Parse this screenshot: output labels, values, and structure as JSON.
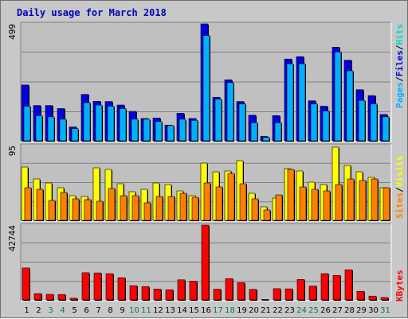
{
  "title": "Daily usage for March 2018",
  "colors": {
    "title": "#0000c0",
    "hits_front": "#00c0ff",
    "hits_back": "#00d8d0",
    "files_front": "#0000e0",
    "pages_front": "#00b0ff",
    "visits": "#ffff00",
    "sites": "#ff8000",
    "kbytes": "#ff0000",
    "weekend": "#008040",
    "weekday": "#000000",
    "panel_bg": "#c0c0c0",
    "grid": "#808080"
  },
  "chart_data": [
    {
      "type": "bar",
      "panel": "top",
      "ylim": [
        0,
        499
      ],
      "max_label": "499",
      "legend_labels": [
        "Pages",
        "/",
        "Files",
        "/",
        "Hits"
      ],
      "categories": [
        "1",
        "2",
        "3",
        "4",
        "5",
        "6",
        "7",
        "8",
        "9",
        "10",
        "11",
        "12",
        "13",
        "14",
        "15",
        "16",
        "17",
        "18",
        "19",
        "20",
        "21",
        "22",
        "23",
        "24",
        "25",
        "26",
        "27",
        "28",
        "29",
        "30",
        "31"
      ],
      "weekend_days": [
        "3",
        "4",
        "10",
        "11",
        "17",
        "18",
        "24",
        "25",
        "31"
      ],
      "series": [
        {
          "name": "Files",
          "values": [
            240,
            153,
            153,
            140,
            62,
            200,
            171,
            170,
            155,
            128,
            98,
            100,
            70,
            120,
            98,
            499,
            188,
            262,
            170,
            112,
            22,
            110,
            350,
            360,
            173,
            150,
            400,
            345,
            220,
            195,
            115
          ]
        },
        {
          "name": "Pages",
          "values": [
            150,
            110,
            105,
            95,
            55,
            165,
            155,
            150,
            140,
            95,
            95,
            85,
            68,
            95,
            90,
            450,
            180,
            250,
            160,
            80,
            18,
            80,
            330,
            330,
            160,
            130,
            380,
            300,
            175,
            160,
            105
          ]
        }
      ]
    },
    {
      "type": "bar",
      "panel": "middle",
      "ylim": [
        0,
        95
      ],
      "max_label": "95",
      "legend_labels": [
        "Sites",
        "/",
        "Visits"
      ],
      "categories": [
        "1",
        "2",
        "3",
        "4",
        "5",
        "6",
        "7",
        "8",
        "9",
        "10",
        "11",
        "12",
        "13",
        "14",
        "15",
        "16",
        "17",
        "18",
        "19",
        "20",
        "21",
        "22",
        "23",
        "24",
        "25",
        "26",
        "27",
        "28",
        "29",
        "30",
        "31"
      ],
      "series": [
        {
          "name": "Visits",
          "values": [
            68,
            53,
            48,
            42,
            32,
            31,
            67,
            65,
            47,
            37,
            40,
            48,
            46,
            38,
            32,
            73,
            62,
            63,
            76,
            35,
            18,
            29,
            66,
            63,
            49,
            46,
            93,
            70,
            62,
            55,
            42
          ]
        },
        {
          "name": "Sites",
          "values": [
            42,
            40,
            26,
            36,
            28,
            27,
            25,
            41,
            32,
            32,
            23,
            31,
            31,
            35,
            30,
            48,
            43,
            60,
            47,
            28,
            14,
            33,
            65,
            43,
            40,
            38,
            46,
            53,
            51,
            53,
            42
          ]
        }
      ]
    },
    {
      "type": "bar",
      "panel": "bottom",
      "ylim": [
        0,
        42744
      ],
      "max_label": "42744",
      "legend_labels": [
        "KBytes"
      ],
      "categories": [
        "1",
        "2",
        "3",
        "4",
        "5",
        "6",
        "7",
        "8",
        "9",
        "10",
        "11",
        "12",
        "13",
        "14",
        "15",
        "16",
        "17",
        "18",
        "19",
        "20",
        "21",
        "22",
        "23",
        "24",
        "25",
        "26",
        "27",
        "28",
        "29",
        "30",
        "31"
      ],
      "series": [
        {
          "name": "KBytes",
          "values": [
            18500,
            4000,
            3600,
            3500,
            1400,
            15800,
            15700,
            15300,
            13000,
            8500,
            8000,
            6600,
            6200,
            11800,
            11000,
            42744,
            6500,
            12500,
            10200,
            6400,
            700,
            6800,
            6700,
            12000,
            8300,
            15300,
            14300,
            17500,
            5300,
            2600,
            1800
          ]
        }
      ]
    }
  ]
}
